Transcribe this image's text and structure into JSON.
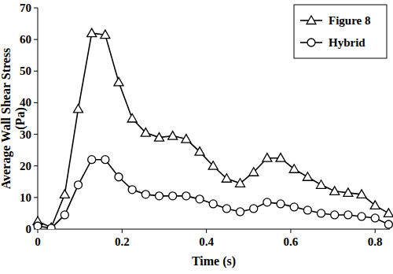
{
  "chart_data": {
    "type": "line",
    "xlabel": "Time (s)",
    "ylabel": "Average Wall Shear Stress (Pa)",
    "x": [
      0,
      0.032,
      0.064,
      0.096,
      0.128,
      0.16,
      0.192,
      0.224,
      0.256,
      0.288,
      0.32,
      0.352,
      0.384,
      0.416,
      0.448,
      0.48,
      0.512,
      0.544,
      0.576,
      0.608,
      0.64,
      0.672,
      0.704,
      0.736,
      0.768,
      0.8,
      0.832
    ],
    "series": [
      {
        "name": "Figure 8",
        "color": "#000000",
        "marker": "triangle",
        "line_style": "solid",
        "values": [
          2.5,
          0.5,
          11,
          38,
          62,
          61.5,
          46.5,
          35,
          30.5,
          29,
          29.5,
          28.5,
          24.5,
          20,
          16,
          14.5,
          18,
          22.5,
          22.5,
          19,
          16.5,
          14,
          12,
          11.5,
          11,
          7.5,
          5
        ]
      },
      {
        "name": "Hybrid",
        "color": "#000000",
        "marker": "circle",
        "line_style": "solid",
        "values": [
          1,
          0.3,
          4.5,
          14,
          22,
          22,
          16.5,
          12.5,
          11,
          10.5,
          10.5,
          10.5,
          9.5,
          8,
          6.5,
          5.5,
          6.5,
          8.5,
          8,
          7,
          6,
          5,
          4.5,
          4.5,
          4,
          3.5,
          1.5
        ]
      }
    ],
    "xlim": [
      0,
      0.835
    ],
    "xticks": [
      0,
      0.2,
      0.4,
      0.6,
      0.8
    ],
    "ylim": [
      0,
      70
    ],
    "yticks": [
      0,
      10,
      20,
      30,
      40,
      50,
      60,
      70
    ],
    "grid": false,
    "legend": "upper right"
  }
}
